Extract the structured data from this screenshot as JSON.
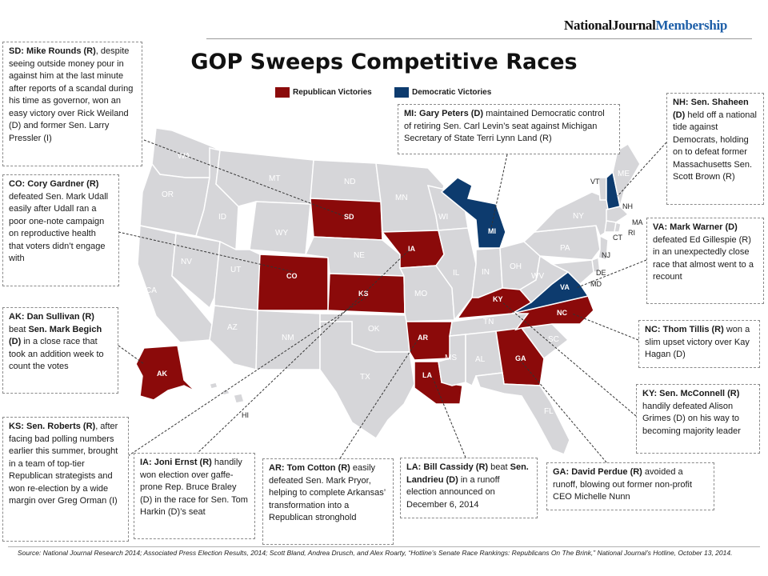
{
  "brand": {
    "part1": "NationalJournal",
    "part2": "Membership"
  },
  "title": "GOP Sweeps Competitive Races",
  "legend": [
    {
      "label": "Republican Victories",
      "color": "#8b0a0a"
    },
    {
      "label": "Democratic Victories",
      "color": "#0d3b6e"
    }
  ],
  "colors": {
    "republican": "#8b0a0a",
    "democratic": "#0d3b6e",
    "neutral": "#d6d6d9"
  },
  "states": {
    "WA": "WA",
    "OR": "OR",
    "CA": "CA",
    "ID": "ID",
    "NV": "NV",
    "UT": "UT",
    "AZ": "AZ",
    "MT": "MT",
    "WY": "WY",
    "CO": "CO",
    "NM": "NM",
    "ND": "ND",
    "SD": "SD",
    "NE": "NE",
    "KS": "KS",
    "OK": "OK",
    "TX": "TX",
    "MN": "MN",
    "IA": "IA",
    "MO": "MO",
    "AR": "AR",
    "LA": "LA",
    "WI": "WI",
    "IL": "IL",
    "MI": "MI",
    "IN": "IN",
    "OH": "OH",
    "KY": "KY",
    "TN": "TN",
    "MS": "MS",
    "AL": "AL",
    "GA": "GA",
    "FL": "FL",
    "SC": "SC",
    "NC": "NC",
    "VA": "VA",
    "WV": "WV",
    "PA": "PA",
    "NY": "NY",
    "VT": "VT",
    "NH": "NH",
    "ME": "ME",
    "MA": "MA",
    "CT": "CT",
    "RI": "RI",
    "NJ": "NJ",
    "DE": "DE",
    "MD": "MD",
    "AK": "AK",
    "HI": "HI"
  },
  "callouts": {
    "sd": {
      "bold": "SD: Mike Rounds (R)",
      "text": ", despite seeing outside money pour in against him at the last minute after reports of a scandal during his time as governor, won an easy victory over Rick Weiland (D) and former Sen. Larry Pressler (I)"
    },
    "co": {
      "bold": "CO: Cory Gardner (R)",
      "text": " defeated Sen. Mark Udall easily after Udall ran a poor one-note campaign on reproductive health that voters didn’t engage with"
    },
    "ak": {
      "bold": "AK: Dan Sullivan (R)",
      "mid": " beat ",
      "bold2": "Sen. Mark Begich (D)",
      "text": " in a close race that took an addition week to count the votes"
    },
    "ks": {
      "bold": "KS: Sen. Roberts (R)",
      "text": ", after facing bad polling numbers earlier this summer, brought in a team of top-tier Republican strategists and won re-election by a wide margin over Greg Orman (I)"
    },
    "ia": {
      "bold": "IA: Joni Ernst (R)",
      "text": " handily won election over gaffe-prone Rep. Bruce Braley (D) in the race for Sen. Tom Harkin (D)’s seat"
    },
    "ar": {
      "bold": "AR: Tom Cotton (R)",
      "text": " easily defeated Sen. Mark Pryor, helping to complete Arkansas’ transformation into a Republican stronghold"
    },
    "la": {
      "bold": "LA: Bill Cassidy (R)",
      "mid": " beat ",
      "bold2": "Sen. Landrieu (D)",
      "text": " in a runoff election announced on December 6, 2014"
    },
    "ga": {
      "bold": "GA: David Perdue (R)",
      "text": " avoided a runoff, blowing out former non-profit CEO Michelle Nunn"
    },
    "mi": {
      "bold": "MI: Gary Peters (D)",
      "text": " maintained Democratic control of retiring Sen. Carl Levin’s seat against Michigan Secretary of State Terri Lynn Land (R)"
    },
    "nh": {
      "bold": "NH: Sen. Shaheen (D)",
      "text": " held off a national tide against Democrats, holding on to defeat former Massachusetts Sen. Scott Brown (R)"
    },
    "va": {
      "bold": "VA: Mark Warner (D)",
      "text": " defeated Ed Gillespie (R) in an unexpectedly close race that almost went to a recount"
    },
    "nc": {
      "bold": "NC: Thom Tillis (R)",
      "text": " won a slim upset victory over Kay Hagan (D)"
    },
    "ky": {
      "bold": "KY: Sen.  McConnell (R)",
      "text": " handily defeated Alison Grimes (D) on his way to becoming majority leader"
    }
  },
  "source": "Source: National Journal Research 2014; Associated Press Election Results, 2014; Scott Bland, Andrea Drusch,  and Alex Roarty, “Hotline’s Senate Race Rankings: Republicans On The Brink,” National Journal’s Hotline, October 13, 2014."
}
